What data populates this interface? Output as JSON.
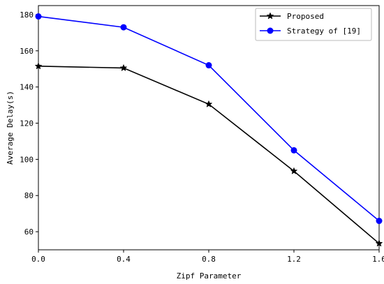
{
  "chart_data": {
    "type": "line",
    "xlabel": "Zipf Parameter",
    "ylabel": "Average Delay(s)",
    "x": [
      0.0,
      0.4,
      0.8,
      1.2,
      1.6
    ],
    "xlim": [
      0.0,
      1.6
    ],
    "ylim": [
      50,
      185
    ],
    "xticks": [
      "0.0",
      "0.4",
      "0.8",
      "1.2",
      "1.6"
    ],
    "yticks": [
      60,
      80,
      100,
      120,
      140,
      160,
      180
    ],
    "grid": false,
    "legend_position": "top-right",
    "series": [
      {
        "name": "Proposed",
        "values": [
          151.5,
          150.5,
          130.5,
          93.5,
          53.5
        ],
        "color": "#000000",
        "marker": "star"
      },
      {
        "name": "Strategy of [19]",
        "values": [
          179,
          173,
          152,
          105,
          66
        ],
        "color": "#0000ff",
        "marker": "circle"
      }
    ]
  }
}
